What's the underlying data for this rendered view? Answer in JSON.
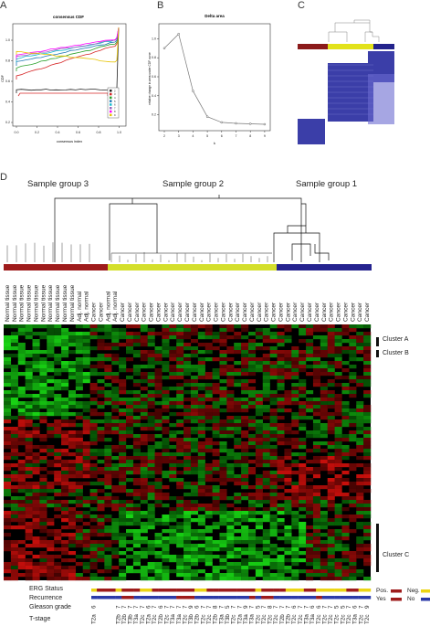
{
  "panels": {
    "a": {
      "letter": "A",
      "title": "consensus CDF",
      "xlabel": "consensus index",
      "ylabel": "CDF",
      "xticks": [
        "0.0",
        "0.2",
        "0.4",
        "0.6",
        "0.8",
        "1.0"
      ],
      "yticks": [
        "0.2",
        "0.4",
        "0.6",
        "0.8",
        "1.0"
      ],
      "legend": [
        "2",
        "3",
        "4",
        "5",
        "6",
        "7",
        "8",
        "9"
      ],
      "colors": [
        "#222222",
        "#d62728",
        "#2ca02c",
        "#1f77b4",
        "#17becf",
        "#9467bd",
        "#ff00ff",
        "#e6c300"
      ]
    },
    "b": {
      "letter": "B",
      "title": "Delta area",
      "xlabel": "k",
      "ylabel": "relative change in area under CDF curve",
      "xticks": [
        "2",
        "3",
        "4",
        "5",
        "6",
        "7",
        "8",
        "9"
      ],
      "yticks": [
        "0.2",
        "0.4",
        "0.6",
        "0.8",
        "1.0"
      ]
    },
    "c": {
      "letter": "C",
      "colors": [
        "#8b1a1a",
        "#e2e21a",
        "#23238c"
      ]
    },
    "d": {
      "letter": "D",
      "group_labels": [
        "Sample group 3",
        "Sample group 2",
        "Sample group 1"
      ],
      "group_colors": [
        "#9e1b1b",
        "#d4df2b",
        "#25238f"
      ],
      "samples": [
        "Normal tissue",
        "Normal tissue",
        "Normal tissue",
        "Normal tissue",
        "Normal tissue",
        "Normal tissue",
        "Normal tissue",
        "Normal tissue",
        "Normal tissue",
        "Normal tissue",
        "Adj. normal",
        "Adj. normal",
        "Cancer",
        "Cancer",
        "Adj. normal",
        "Adj. normal",
        "Cancer",
        "Cancer",
        "Cancer",
        "Cancer",
        "Cancer",
        "Cancer",
        "Cancer",
        "Cancer",
        "Cancer",
        "Cancer",
        "Cancer",
        "Cancer",
        "Cancer",
        "Cancer",
        "Cancer",
        "Cancer",
        "Cancer",
        "Cancer",
        "Cancer",
        "Cancer",
        "Cancer",
        "Cancer",
        "Cancer",
        "Cancer",
        "Cancer",
        "Cancer",
        "Cancer",
        "Cancer",
        "Cancer",
        "Cancer",
        "Cancer",
        "Cancer",
        "Cancer",
        "Cancer",
        "Cancer"
      ],
      "clusters": [
        "Cluster A",
        "Cluster B",
        "Cluster C"
      ],
      "annotation_rows": [
        "ERG Status",
        "Recurrence",
        "Gleason grade",
        "T-stage"
      ],
      "gleason": [
        "6",
        "",
        "",
        "",
        "7",
        "7",
        "7",
        "7",
        "7",
        "6",
        "7",
        "6",
        "7",
        "7",
        "7",
        "7",
        "9",
        "6",
        "7",
        "7",
        "8",
        "7",
        "5",
        "7",
        "7",
        "9",
        "7",
        "5",
        "7",
        "8",
        "7",
        "7",
        "7",
        "6",
        "7",
        "7",
        "6",
        "6",
        "7",
        "7",
        "5",
        "5",
        "7",
        "6",
        "7",
        "9"
      ],
      "tstage": [
        "T2a",
        "",
        "",
        "",
        "T2b",
        "T2b",
        "T3b",
        "T3a",
        "T2c",
        "T2a",
        "T2c",
        "T2b",
        "T2c",
        "T3a",
        "T3a",
        "T2c",
        "T3b",
        "T2b",
        "T2c",
        "T2c",
        "T2b",
        "T3a",
        "T3b",
        "T2c",
        "T2a",
        "T3a",
        "T3a",
        "T2c",
        "T2c",
        "T2c",
        "T2c",
        "T2b",
        "T2b",
        "T2c",
        "T2c",
        "T3a",
        "T3a",
        "T2c",
        "T2c",
        "T2c",
        "T2c",
        "T2c",
        "T2c",
        "T3a",
        "T2c",
        "T2c"
      ],
      "legend": {
        "erg_pos": "Pos.",
        "erg_neg": "Neg.",
        "rec_yes": "Yes",
        "rec_no": "No",
        "pos_color": "#9e1b1b",
        "neg_color": "#ecd514",
        "yes_color": "#9e1b1b",
        "no_color": "#2b3aa8"
      },
      "heat_colors": {
        "high": "#ff2020",
        "mid": "#000000",
        "low": "#30ff30"
      }
    }
  }
}
